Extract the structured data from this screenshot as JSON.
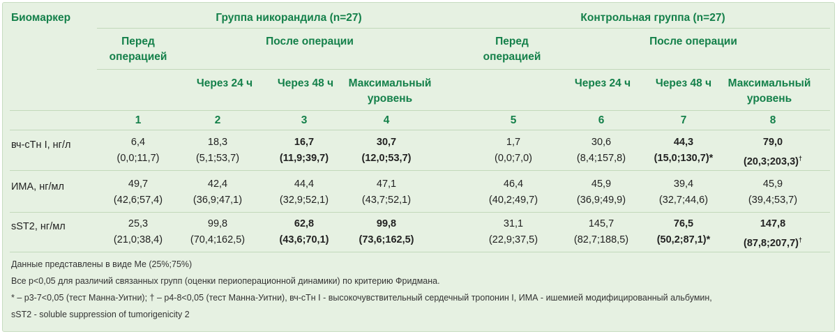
{
  "header": {
    "biomarker_label": "Биомаркер",
    "group1_title": "Группа никорандила (n=27)",
    "group2_title": "Контрольная группа (n=27)",
    "before_op": "Перед операцией",
    "after_op": "После операции",
    "after_24": "Через 24 ч",
    "after_48": "Через 48 ч",
    "max_level": "Максимальный уровень",
    "col_numbers": [
      "1",
      "2",
      "3",
      "4",
      "5",
      "6",
      "7",
      "8"
    ]
  },
  "rows": [
    {
      "label": "вч-сТн I, нг/л",
      "median": [
        "6,4",
        "18,3",
        "16,7",
        "30,7",
        "1,7",
        "30,6",
        "44,3",
        "79,0"
      ],
      "iqr": [
        "(0,0;11,7)",
        "(5,1;53,7)",
        "(11,9;39,7)",
        "(12,0;53,7)",
        "(0,0;7,0)",
        "(8,4;157,8)",
        "(15,0;130,7)*",
        "(20,3;203,3)"
      ],
      "mark": [
        "",
        "",
        "",
        "",
        "",
        "",
        "",
        "†"
      ]
    },
    {
      "label": "ИМА, нг/мл",
      "median": [
        "49,7",
        "42,4",
        "44,4",
        "47,1",
        "46,4",
        "45,9",
        "39,4",
        "45,9"
      ],
      "iqr": [
        "(42,6;57,4)",
        "(36,9;47,1)",
        "(32,9;52,1)",
        "(43,7;52,1)",
        "(40,2;49,7)",
        "(36,9;49,9)",
        "(32,7;44,6)",
        "(39,4;53,7)"
      ],
      "mark": [
        "",
        "",
        "",
        "",
        "",
        "",
        "",
        ""
      ]
    },
    {
      "label": "sST2, нг/мл",
      "median": [
        "25,3",
        "99,8",
        "62,8",
        "99,8",
        "31,1",
        "145,7",
        "76,5",
        "147,8"
      ],
      "iqr": [
        "(21,0;38,4)",
        "(70,4;162,5)",
        "(43,6;70,1)",
        "(73,6;162,5)",
        "(22,9;37,5)",
        "(82,7;188,5)",
        "(50,2;87,1)*",
        "(87,8;207,7)"
      ],
      "mark": [
        "",
        "",
        "",
        "",
        "",
        "",
        "",
        "†"
      ]
    }
  ],
  "notes": [
    "Данные представлены в виде Me (25%;75%)",
    "Все p<0,05 для различий связанных групп (оценки периоперационной динамики) по критерию Фридмана.",
    "* – p3-7<0,05 (тест Манна-Уитни); † – p4-8<0,05 (тест Манна-Уитни), вч-сТн I - высокочувствительный сердечный тропонин I, ИМА - ишемией модифицированный альбумин,",
    "sST2 - soluble suppression of tumorigenicity 2"
  ],
  "colors": {
    "panel": "#e6f1e2",
    "header_text": "#14804a",
    "rule": "#c2d8ba"
  }
}
